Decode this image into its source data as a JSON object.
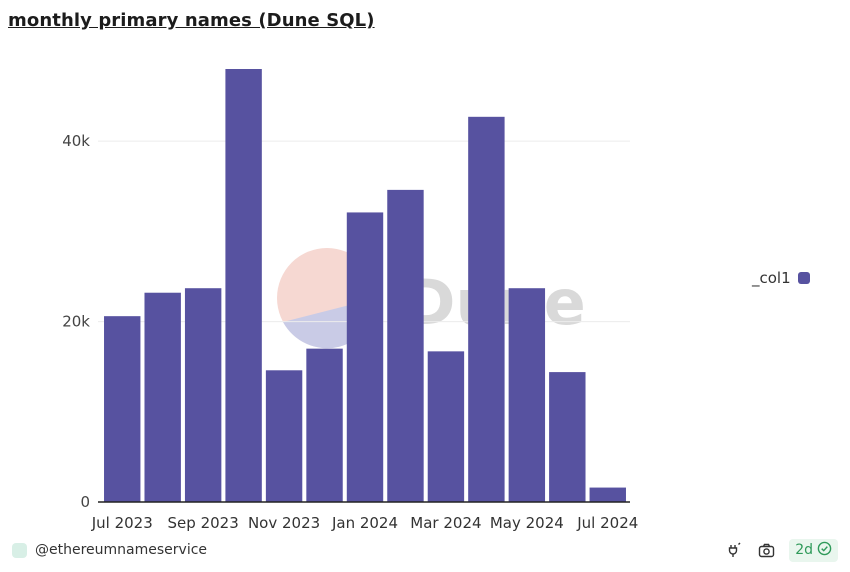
{
  "title": "monthly primary names (Dune SQL)",
  "watermark": "Dune",
  "legend": {
    "label": "_col1",
    "color": "#5752a0"
  },
  "footer": {
    "author": "@ethereumnameservice",
    "age": "2d"
  },
  "icons": [
    "refresh-plug-icon",
    "camera-icon",
    "check-circle-icon"
  ],
  "colors": {
    "bar": "#5752a0",
    "grid": "#ececec",
    "watermark_fill": "#f6d8d2",
    "age_badge": "#2f9a5a"
  },
  "chart_data": {
    "type": "bar",
    "categories": [
      "Jul 2023",
      "Aug 2023",
      "Sep 2023",
      "Oct 2023",
      "Nov 2023",
      "Dec 2023",
      "Jan 2024",
      "Feb 2024",
      "Mar 2024",
      "Apr 2024",
      "May 2024",
      "Jun 2024",
      "Jul 2024"
    ],
    "x_tick_labels": [
      "Jul 2023",
      "Sep 2023",
      "Nov 2023",
      "Jan 2024",
      "Mar 2024",
      "May 2024",
      "Jul 2024"
    ],
    "y_ticks": [
      "0",
      "20k",
      "40k"
    ],
    "series": [
      {
        "name": "_col1",
        "values": [
          20600,
          23200,
          23700,
          48000,
          14600,
          17000,
          32100,
          34600,
          16700,
          42700,
          23700,
          14400,
          1600
        ]
      }
    ],
    "ylim": [
      0,
      48000
    ],
    "grid": true,
    "legend_position": "right"
  }
}
